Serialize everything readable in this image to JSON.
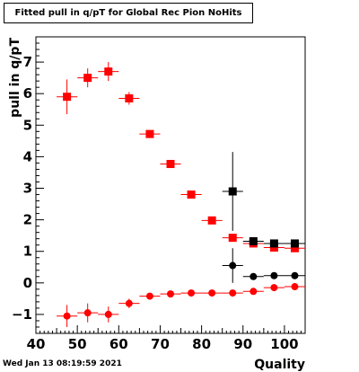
{
  "chart_data": {
    "type": "scatter",
    "title": "Fitted pull in q/pT for Global Rec Pion NoHits",
    "xlabel": "Quality",
    "ylabel": "pull in q/pT",
    "xlim": [
      40,
      105
    ],
    "ylim": [
      -1.6,
      7.8
    ],
    "x_ticks": [
      40,
      50,
      60,
      70,
      80,
      90,
      100
    ],
    "y_ticks": [
      -1,
      0,
      1,
      2,
      3,
      4,
      5,
      6,
      7
    ],
    "grid": false,
    "series": [
      {
        "marker": "square",
        "color": "#ff0000",
        "points": [
          {
            "x": 47.5,
            "y": 5.9,
            "xerr": 2.5,
            "yerr": 0.55
          },
          {
            "x": 52.5,
            "y": 6.5,
            "xerr": 2.5,
            "yerr": 0.3
          },
          {
            "x": 57.5,
            "y": 6.7,
            "xerr": 2.5,
            "yerr": 0.3
          },
          {
            "x": 62.5,
            "y": 5.85,
            "xerr": 2.5,
            "yerr": 0.2
          },
          {
            "x": 67.5,
            "y": 4.72,
            "xerr": 2.5,
            "yerr": 0.08
          },
          {
            "x": 72.5,
            "y": 3.77,
            "xerr": 2.5,
            "yerr": 0.06
          },
          {
            "x": 77.5,
            "y": 2.8,
            "xerr": 2.5,
            "yerr": 0.05
          },
          {
            "x": 82.5,
            "y": 1.98,
            "xerr": 2.5,
            "yerr": 0.05
          },
          {
            "x": 87.5,
            "y": 1.43,
            "xerr": 2.5,
            "yerr": 0.05
          },
          {
            "x": 92.5,
            "y": 1.25,
            "xerr": 2.5,
            "yerr": 0.04
          },
          {
            "x": 97.5,
            "y": 1.12,
            "xerr": 2.5,
            "yerr": 0.03
          },
          {
            "x": 102.5,
            "y": 1.1,
            "xerr": 2.5,
            "yerr": 0.03
          }
        ]
      },
      {
        "marker": "square",
        "color": "#000000",
        "points": [
          {
            "x": 87.5,
            "y": 2.9,
            "xerr": 2.5,
            "yerr": 1.25
          },
          {
            "x": 92.5,
            "y": 1.32,
            "xerr": 2.5,
            "yerr": 0.05
          },
          {
            "x": 97.5,
            "y": 1.25,
            "xerr": 2.5,
            "yerr": 0.04
          },
          {
            "x": 102.5,
            "y": 1.25,
            "xerr": 2.5,
            "yerr": 0.03
          }
        ]
      },
      {
        "marker": "circle",
        "color": "#ff0000",
        "points": [
          {
            "x": 47.5,
            "y": -1.05,
            "xerr": 2.5,
            "yerr": 0.35
          },
          {
            "x": 52.5,
            "y": -0.95,
            "xerr": 2.5,
            "yerr": 0.3
          },
          {
            "x": 57.5,
            "y": -1.0,
            "xerr": 2.5,
            "yerr": 0.25
          },
          {
            "x": 62.5,
            "y": -0.65,
            "xerr": 2.5,
            "yerr": 0.15
          },
          {
            "x": 67.5,
            "y": -0.42,
            "xerr": 2.5,
            "yerr": 0.07
          },
          {
            "x": 72.5,
            "y": -0.35,
            "xerr": 2.5,
            "yerr": 0.05
          },
          {
            "x": 77.5,
            "y": -0.32,
            "xerr": 2.5,
            "yerr": 0.04
          },
          {
            "x": 82.5,
            "y": -0.32,
            "xerr": 2.5,
            "yerr": 0.04
          },
          {
            "x": 87.5,
            "y": -0.32,
            "xerr": 2.5,
            "yerr": 0.04
          },
          {
            "x": 92.5,
            "y": -0.27,
            "xerr": 2.5,
            "yerr": 0.04
          },
          {
            "x": 97.5,
            "y": -0.15,
            "xerr": 2.5,
            "yerr": 0.03
          },
          {
            "x": 102.5,
            "y": -0.12,
            "xerr": 2.5,
            "yerr": 0.03
          }
        ]
      },
      {
        "marker": "circle",
        "color": "#000000",
        "points": [
          {
            "x": 87.5,
            "y": 0.55,
            "xerr": 2.5,
            "yerr": 0.55
          },
          {
            "x": 92.5,
            "y": 0.2,
            "xerr": 2.5,
            "yerr": 0.08
          },
          {
            "x": 97.5,
            "y": 0.23,
            "xerr": 2.5,
            "yerr": 0.05
          },
          {
            "x": 102.5,
            "y": 0.23,
            "xerr": 2.5,
            "yerr": 0.04
          }
        ]
      }
    ]
  },
  "timestamp": "Wed Jan 13 08:19:59 2021"
}
